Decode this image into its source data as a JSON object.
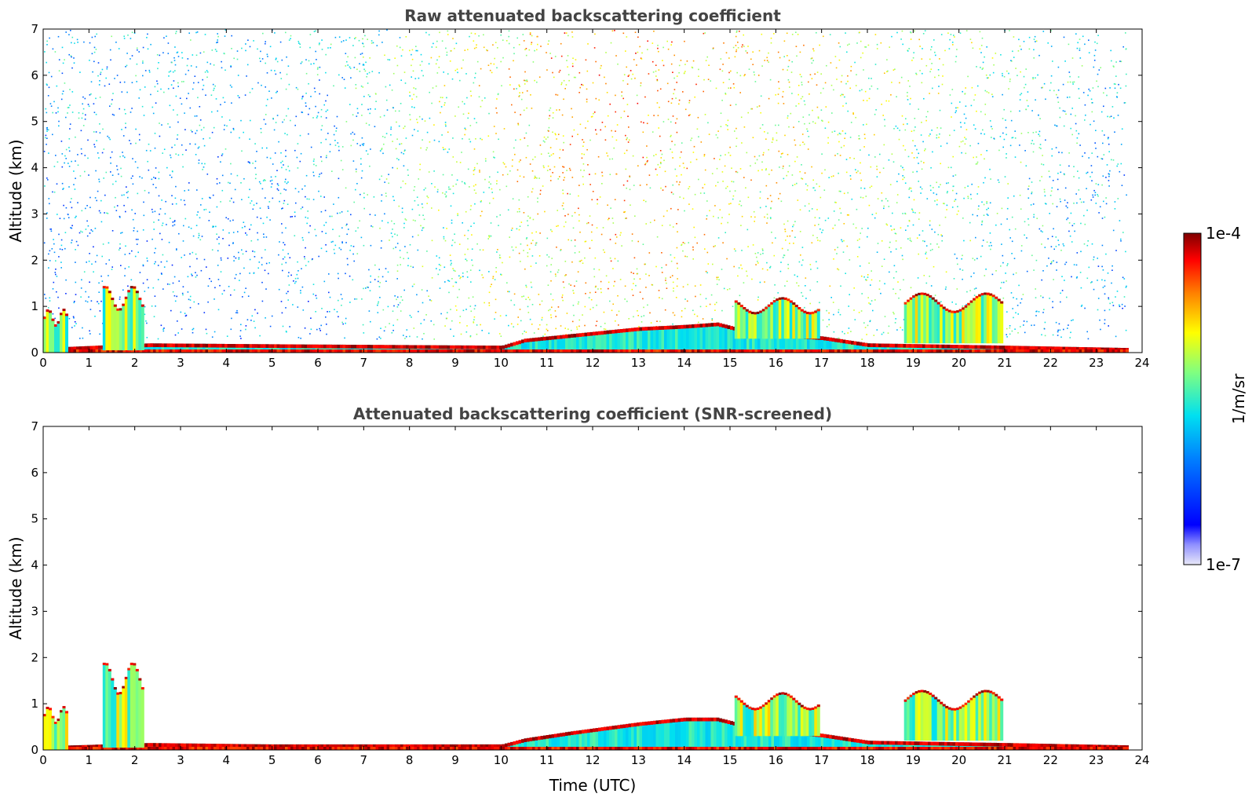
{
  "chart_data": [
    {
      "type": "heatmap",
      "title": "Raw attenuated backscattering coefficient",
      "xlabel": "",
      "ylabel": "Altitude (km)",
      "xlim": [
        0,
        24
      ],
      "ylim": [
        0,
        7
      ],
      "x_ticks": [
        "0",
        "1",
        "2",
        "3",
        "4",
        "5",
        "6",
        "7",
        "8",
        "9",
        "10",
        "11",
        "12",
        "13",
        "14",
        "15",
        "16",
        "17",
        "18",
        "19",
        "20",
        "21",
        "22",
        "23",
        "24"
      ],
      "y_ticks": [
        "0",
        "1",
        "2",
        "3",
        "4",
        "5",
        "6",
        "7"
      ],
      "data_end_hour": 23.65,
      "features": {
        "boundary_layer_top_km": [
          [
            0,
            0.1
          ],
          [
            2.3,
            0.2
          ],
          [
            5.0,
            0.18
          ],
          [
            10.0,
            0.15
          ],
          [
            10.5,
            0.3
          ],
          [
            11.5,
            0.4
          ],
          [
            13.0,
            0.55
          ],
          [
            14.0,
            0.6
          ],
          [
            14.7,
            0.65
          ],
          [
            15.5,
            0.45
          ],
          [
            17.0,
            0.35
          ],
          [
            18.0,
            0.2
          ],
          [
            21.0,
            0.15
          ],
          [
            23.65,
            0.1
          ]
        ],
        "cloud_layers": [
          {
            "x0": 0.0,
            "x1": 0.5,
            "base_km": 0.0,
            "top_km": 0.95
          },
          {
            "x0": 1.3,
            "x1": 2.2,
            "base_km": 0.05,
            "top_km": 1.45
          },
          {
            "x0": 15.1,
            "x1": 16.9,
            "base_km": 0.3,
            "top_km": 1.2
          },
          {
            "x0": 18.8,
            "x1": 20.9,
            "base_km": 0.2,
            "top_km": 1.3
          }
        ],
        "noise_level_km": [
          [
            0,
            0.3
          ],
          [
            6,
            0.3
          ],
          [
            10,
            0.8
          ],
          [
            12,
            1.0
          ],
          [
            20,
            0.6
          ],
          [
            23.65,
            0.3
          ]
        ]
      }
    },
    {
      "type": "heatmap",
      "title": "Attenuated backscattering coefficient (SNR-screened)",
      "xlabel": "Time (UTC)",
      "ylabel": "Altitude (km)",
      "xlim": [
        0,
        24
      ],
      "ylim": [
        0,
        7
      ],
      "x_ticks": [
        "0",
        "1",
        "2",
        "3",
        "4",
        "5",
        "6",
        "7",
        "8",
        "9",
        "10",
        "11",
        "12",
        "13",
        "14",
        "15",
        "16",
        "17",
        "18",
        "19",
        "20",
        "21",
        "22",
        "23",
        "24"
      ],
      "y_ticks": [
        "0",
        "1",
        "2",
        "3",
        "4",
        "5",
        "6",
        "7"
      ],
      "data_end_hour": 23.65,
      "features": {
        "boundary_layer_top_km": [
          [
            0,
            0.08
          ],
          [
            2.3,
            0.15
          ],
          [
            5.0,
            0.12
          ],
          [
            10.0,
            0.12
          ],
          [
            10.5,
            0.25
          ],
          [
            11.5,
            0.4
          ],
          [
            13.0,
            0.6
          ],
          [
            14.0,
            0.7
          ],
          [
            14.7,
            0.7
          ],
          [
            15.5,
            0.5
          ],
          [
            17.0,
            0.35
          ],
          [
            18.0,
            0.2
          ],
          [
            21.0,
            0.15
          ],
          [
            23.65,
            0.1
          ]
        ],
        "cloud_layers": [
          {
            "x0": 0.0,
            "x1": 0.5,
            "base_km": 0.0,
            "top_km": 0.95
          },
          {
            "x0": 1.3,
            "x1": 2.2,
            "base_km": 0.05,
            "top_km": 1.9
          },
          {
            "x0": 15.1,
            "x1": 16.9,
            "base_km": 0.3,
            "top_km": 1.25
          },
          {
            "x0": 18.8,
            "x1": 20.9,
            "base_km": 0.2,
            "top_km": 1.3
          }
        ]
      }
    }
  ],
  "colorbar": {
    "label": "1/m/sr",
    "max_label": "1e-4",
    "min_label": "1e-7",
    "scale": "log",
    "colormap": "jet",
    "colors": [
      "#e8e8f8",
      "#0000ff",
      "#0080ff",
      "#00e0f0",
      "#80ff80",
      "#ffff00",
      "#ff8000",
      "#ff0000",
      "#800000"
    ]
  }
}
